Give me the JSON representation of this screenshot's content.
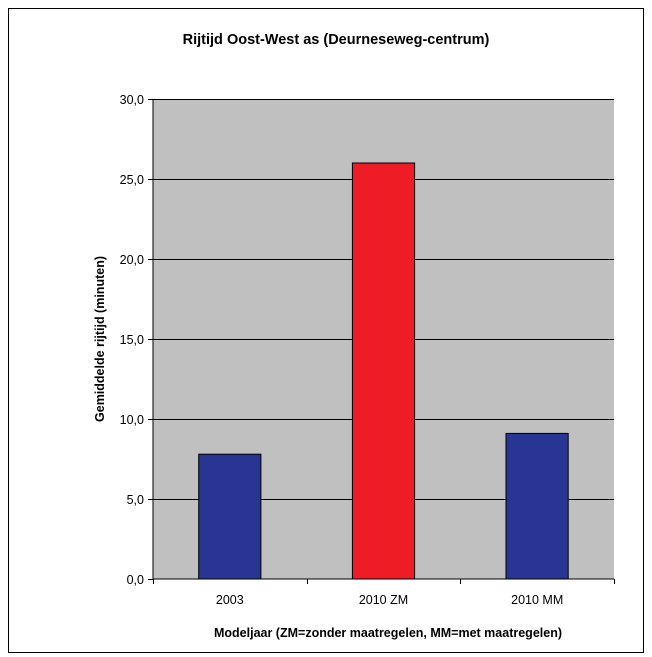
{
  "chart_data": {
    "type": "bar",
    "title": "Rijtijd Oost-West as (Deurneseweg-centrum)",
    "xlabel": "Modeljaar (ZM=zonder maatregelen, MM=met maatregelen)",
    "ylabel": "Gemiddelde rijtijd  (minuten)",
    "categories": [
      "2003",
      "2010 ZM",
      "2010 MM"
    ],
    "values": [
      7.8,
      26.0,
      9.1
    ],
    "bar_colors": [
      "#283593",
      "#ee1c24",
      "#283593"
    ],
    "ylim": [
      0,
      30
    ],
    "yticks": [
      "0,0",
      "5,0",
      "10,0",
      "15,0",
      "20,0",
      "25,0",
      "30,0"
    ],
    "ytick_values": [
      0,
      5,
      10,
      15,
      20,
      25,
      30
    ],
    "plot_background": "#c0c0c0",
    "grid": true,
    "legend": "none"
  }
}
